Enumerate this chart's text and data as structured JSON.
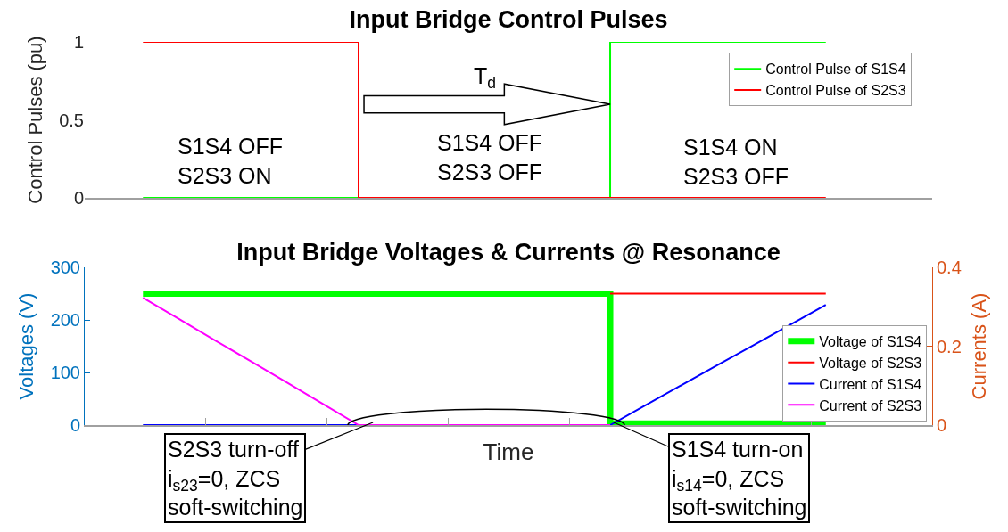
{
  "chart_data": [
    {
      "type": "step",
      "title": "Input Bridge Control Pulses",
      "ylabel": "Control Pulses (pu)",
      "categories": [
        null,
        null,
        null,
        null,
        null,
        null,
        null,
        null,
        null,
        null,
        null,
        null,
        null,
        null,
        null,
        null,
        null,
        null,
        null,
        null
      ],
      "ylim": [
        0,
        1
      ],
      "yticks": [
        0,
        0.5,
        1
      ],
      "tick_labels": "y",
      "grid": false,
      "legend": "top right",
      "series": [
        {
          "name": "Control Pulse of S1S4",
          "color": "#00ff00",
          "values": [
            0,
            0,
            0,
            0,
            0,
            0,
            0,
            0,
            0,
            0,
            0,
            0,
            0,
            1,
            1,
            1,
            1,
            1,
            1,
            1
          ]
        },
        {
          "name": "Control Pulse of S2S3",
          "color": "#ff0000",
          "values": [
            1,
            1,
            1,
            1,
            1,
            1,
            0,
            0,
            0,
            0,
            0,
            0,
            0,
            0,
            0,
            0,
            0,
            0,
            0,
            0
          ]
        }
      ],
      "annotations": [
        "S1S4 OFF\nS2S3 ON",
        "T$_{d}$",
        "S1S4 OFF\nS2S3 OFF",
        "S1S4 ON\nS2S3 OFF"
      ]
    },
    {
      "type": "line",
      "title": "Input Bridge Voltages & Currents @ Resonance",
      "xlabel": "Time",
      "ylabel": "Voltages (V)",
      "y2label": "Currents (A)",
      "categories": [
        null,
        null,
        null,
        null,
        null,
        null,
        null,
        null,
        null,
        null,
        null,
        null,
        null,
        null,
        null,
        null,
        null,
        null,
        null,
        null
      ],
      "ylim": [
        0,
        300
      ],
      "yticks": [
        0,
        100,
        200,
        300
      ],
      "y2lim": [
        0,
        0.4
      ],
      "y2ticks": [
        0,
        0.2,
        0.4
      ],
      "tick_labels": "y",
      "grid": false,
      "legend": "right",
      "series": [
        {
          "name": "Voltage of S1S4",
          "type": "step",
          "color": "#00ff00",
          "values": [
            250,
            250,
            250,
            250,
            250,
            250,
            250,
            250,
            250,
            250,
            250,
            250,
            250,
            3,
            3,
            3,
            3,
            3,
            3,
            3
          ]
        },
        {
          "name": "Voltage of S2S3",
          "type": "step",
          "color": "#ff0000",
          "values": [
            null,
            null,
            null,
            null,
            null,
            null,
            null,
            null,
            null,
            null,
            null,
            null,
            null,
            250,
            250,
            250,
            250,
            250,
            250,
            250
          ]
        },
        {
          "name": "Current of S1S4",
          "color": "#0000ff",
          "axis": "y2",
          "values": [
            0,
            0,
            0,
            0,
            0,
            0,
            0,
            0,
            0,
            0,
            0,
            0,
            0,
            0,
            0.051,
            0.102,
            0.153,
            0.203,
            0.254,
            0.305
          ]
        },
        {
          "name": "Current of S2S3",
          "color": "#ff00ff",
          "axis": "y2",
          "values": [
            0.323,
            0.269,
            0.215,
            0.162,
            0.108,
            0.054,
            0,
            0,
            0,
            0,
            0,
            0,
            0,
            0,
            null,
            null,
            null,
            null,
            null,
            null
          ]
        }
      ],
      "annotations": [
        "S2S3 turn-off\ni$_{s23}$=0, ZCS\nsoft-switching",
        "S1S4 turn-on\ni$_{s14}$=0, ZCS\nsoft-switching"
      ]
    }
  ]
}
